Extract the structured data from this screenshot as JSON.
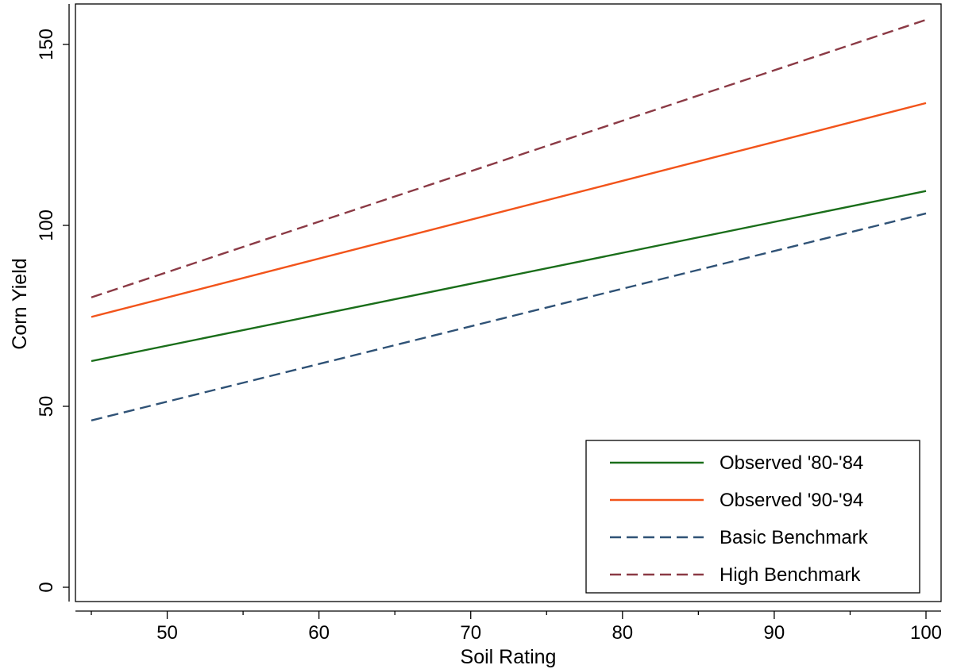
{
  "chart_data": {
    "type": "line",
    "title": "",
    "xlabel": "Soil Rating",
    "ylabel": "Corn Yield",
    "xlim": [
      44.5,
      100.5
    ],
    "ylim": [
      -5,
      160
    ],
    "x_ticks": [
      50,
      60,
      70,
      80,
      90,
      100
    ],
    "x_tick_labels": [
      "50",
      "60",
      "70",
      "80",
      "90",
      "100"
    ],
    "x_minor_ticks": [
      45,
      55,
      65,
      75,
      85,
      95
    ],
    "y_ticks": [
      0,
      50,
      100,
      150
    ],
    "y_tick_labels": [
      "0",
      "50",
      "100",
      "150"
    ],
    "grid": false,
    "legend_position": "bottom-right",
    "series": [
      {
        "name": "Observed '80-'84",
        "color": "#1a6e1a",
        "dash": "solid",
        "x": [
          45,
          100
        ],
        "y": [
          62.5,
          109.5
        ]
      },
      {
        "name": "Observed '90-'94",
        "color": "#f2541b",
        "dash": "solid",
        "x": [
          45,
          100
        ],
        "y": [
          74.7,
          133.8
        ]
      },
      {
        "name": "Basic Benchmark",
        "color": "#2f5276",
        "dash": "dashed",
        "x": [
          45,
          100
        ],
        "y": [
          46.1,
          103.3
        ]
      },
      {
        "name": "High Benchmark",
        "color": "#8b3a45",
        "dash": "dashed",
        "x": [
          45,
          100
        ],
        "y": [
          80.1,
          156.8
        ]
      }
    ]
  }
}
